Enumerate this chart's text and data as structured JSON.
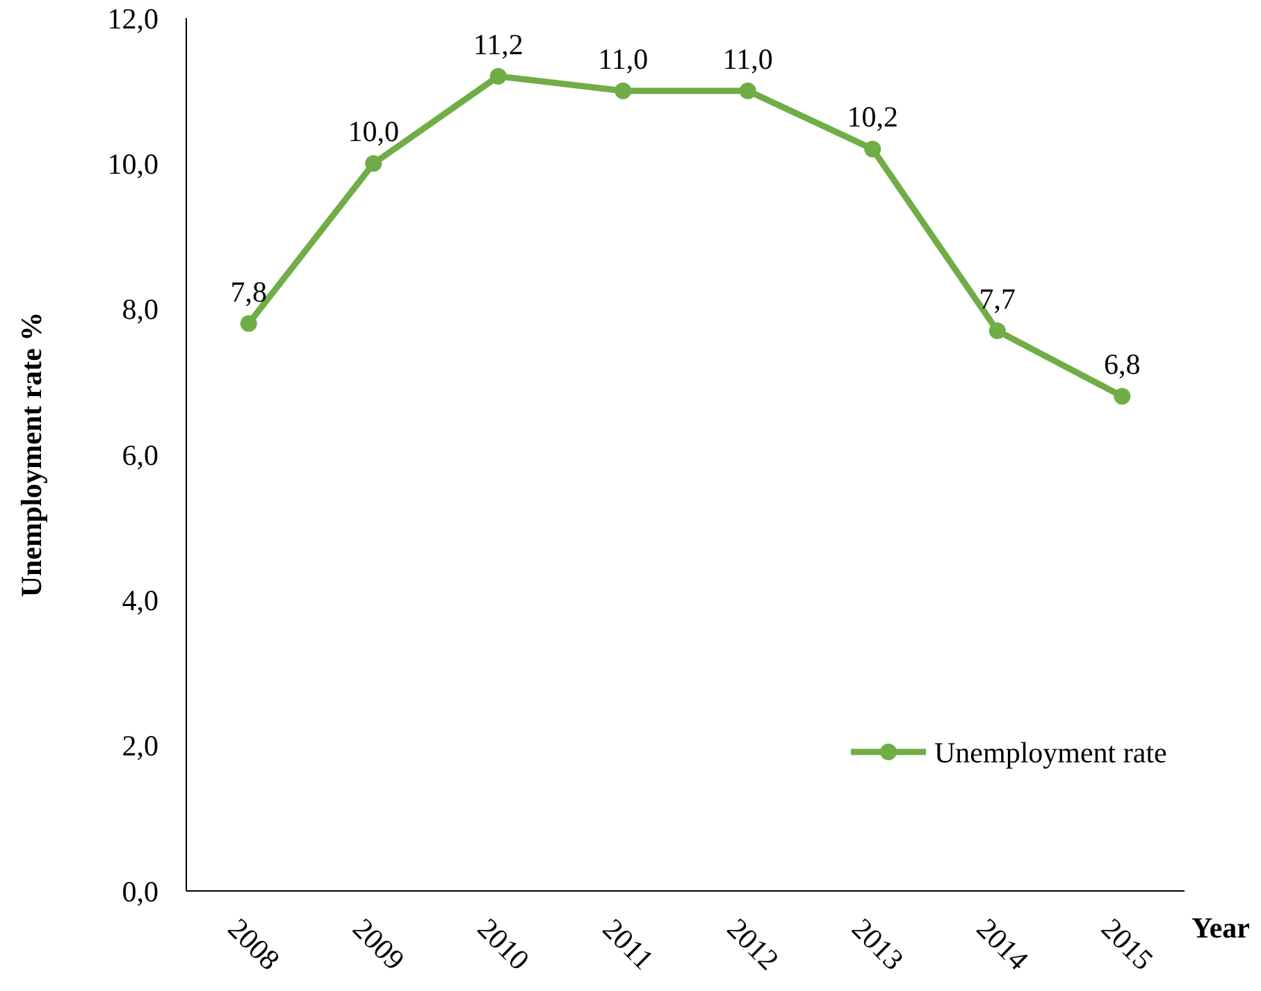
{
  "chart_data": {
    "type": "line",
    "xlabel": "Year",
    "ylabel": "Unemployment rate %",
    "categories": [
      "2008",
      "2009",
      "2010",
      "2011",
      "2012",
      "2013",
      "2014",
      "2015"
    ],
    "series": [
      {
        "name": "Unemployment rate",
        "color": "#70ad47",
        "values": [
          7.8,
          10.0,
          11.2,
          11.0,
          11.0,
          10.2,
          7.7,
          6.8
        ],
        "value_labels": [
          "7,8",
          "10,0",
          "11,2",
          "11,0",
          "11,0",
          "10,2",
          "7,7",
          "6,8"
        ]
      }
    ],
    "ylim": [
      0,
      12
    ],
    "yticks": [
      {
        "value": 0,
        "label": "0,0"
      },
      {
        "value": 2,
        "label": "2,0"
      },
      {
        "value": 4,
        "label": "4,0"
      },
      {
        "value": 6,
        "label": "6,0"
      },
      {
        "value": 8,
        "label": "8,0"
      },
      {
        "value": 10,
        "label": "10,0"
      },
      {
        "value": 12,
        "label": "12,0"
      }
    ],
    "grid": false,
    "legend": "right",
    "marker": "circle",
    "line_style": "solid"
  }
}
